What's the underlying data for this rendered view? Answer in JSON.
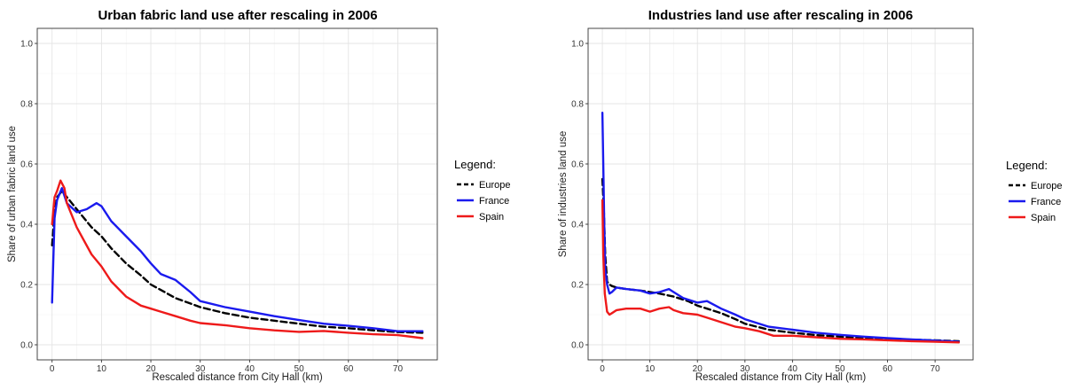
{
  "chart_data": [
    {
      "type": "line",
      "title": "Urban fabric land use after rescaling in 2006",
      "xlabel": "Rescaled distance from City Hall (km)",
      "ylabel": "Share of urban fabric land use",
      "xlim": [
        -3,
        78
      ],
      "ylim": [
        -0.05,
        1.05
      ],
      "xticks": [
        0,
        10,
        20,
        30,
        40,
        50,
        60,
        70
      ],
      "yticks": [
        0.0,
        0.2,
        0.4,
        0.6,
        0.8,
        1.0
      ],
      "grid": true,
      "legend": {
        "title": "Legend:",
        "placement": "right"
      },
      "series": [
        {
          "name": "Europe",
          "color": "#000000",
          "dash": "dashed",
          "x": [
            0,
            0.5,
            1,
            2,
            3,
            5,
            8,
            10,
            12,
            15,
            18,
            20,
            25,
            30,
            35,
            40,
            45,
            50,
            55,
            60,
            65,
            70,
            75
          ],
          "y": [
            0.33,
            0.44,
            0.49,
            0.51,
            0.49,
            0.45,
            0.39,
            0.36,
            0.32,
            0.27,
            0.23,
            0.2,
            0.155,
            0.125,
            0.105,
            0.09,
            0.08,
            0.07,
            0.06,
            0.055,
            0.048,
            0.042,
            0.04
          ]
        },
        {
          "name": "France",
          "color": "#1a1aee",
          "dash": "solid",
          "x": [
            0,
            0.5,
            1,
            2,
            3,
            5,
            7,
            9,
            10,
            12,
            15,
            18,
            20,
            22,
            25,
            28,
            30,
            35,
            40,
            45,
            50,
            55,
            60,
            65,
            70,
            75
          ],
          "y": [
            0.14,
            0.42,
            0.48,
            0.52,
            0.47,
            0.44,
            0.45,
            0.47,
            0.46,
            0.41,
            0.36,
            0.31,
            0.27,
            0.235,
            0.215,
            0.175,
            0.145,
            0.125,
            0.11,
            0.095,
            0.082,
            0.07,
            0.063,
            0.055,
            0.045,
            0.045
          ]
        },
        {
          "name": "Spain",
          "color": "#ee1a1a",
          "dash": "solid",
          "x": [
            0,
            0.5,
            1,
            1.7,
            2.5,
            3,
            5,
            8,
            10,
            12,
            15,
            18,
            20,
            22,
            25,
            28,
            30,
            35,
            40,
            45,
            50,
            55,
            60,
            65,
            70,
            75
          ],
          "y": [
            0.4,
            0.49,
            0.51,
            0.545,
            0.52,
            0.47,
            0.39,
            0.3,
            0.26,
            0.21,
            0.16,
            0.13,
            0.12,
            0.11,
            0.095,
            0.08,
            0.072,
            0.065,
            0.055,
            0.048,
            0.043,
            0.046,
            0.04,
            0.035,
            0.032,
            0.022
          ]
        }
      ]
    },
    {
      "type": "line",
      "title": "Industries land use after rescaling in 2006",
      "xlabel": "Rescaled distance from City Hall (km)",
      "ylabel": "Share of industries land use",
      "xlim": [
        -3,
        78
      ],
      "ylim": [
        -0.05,
        1.05
      ],
      "xticks": [
        0,
        10,
        20,
        30,
        40,
        50,
        60,
        70
      ],
      "yticks": [
        0.0,
        0.2,
        0.4,
        0.6,
        0.8,
        1.0
      ],
      "grid": true,
      "legend": {
        "title": "Legend:",
        "placement": "right"
      },
      "series": [
        {
          "name": "Europe",
          "color": "#000000",
          "dash": "dashed",
          "x": [
            0,
            0.3,
            0.6,
            1,
            1.5,
            2,
            3,
            5,
            8,
            10,
            12,
            15,
            18,
            20,
            22,
            25,
            28,
            30,
            35,
            40,
            45,
            50,
            55,
            60,
            65,
            70,
            75
          ],
          "y": [
            0.55,
            0.45,
            0.3,
            0.21,
            0.2,
            0.195,
            0.19,
            0.185,
            0.18,
            0.175,
            0.17,
            0.16,
            0.145,
            0.13,
            0.12,
            0.105,
            0.085,
            0.07,
            0.05,
            0.04,
            0.032,
            0.027,
            0.022,
            0.02,
            0.017,
            0.015,
            0.012
          ]
        },
        {
          "name": "France",
          "color": "#1a1aee",
          "dash": "solid",
          "x": [
            0,
            0.2,
            0.4,
            0.6,
            1,
            1.5,
            2,
            3,
            5,
            8,
            10,
            12,
            14,
            15,
            17,
            20,
            22,
            25,
            28,
            30,
            35,
            40,
            45,
            50,
            55,
            60,
            65,
            70,
            75
          ],
          "y": [
            0.77,
            0.6,
            0.4,
            0.25,
            0.2,
            0.17,
            0.175,
            0.19,
            0.185,
            0.18,
            0.17,
            0.175,
            0.185,
            0.175,
            0.155,
            0.14,
            0.145,
            0.12,
            0.1,
            0.085,
            0.06,
            0.05,
            0.04,
            0.033,
            0.027,
            0.022,
            0.018,
            0.014,
            0.01
          ]
        },
        {
          "name": "Spain",
          "color": "#ee1a1a",
          "dash": "solid",
          "x": [
            0,
            0.2,
            0.5,
            1,
            1.5,
            2,
            3,
            5,
            8,
            10,
            12,
            14,
            15,
            17,
            20,
            22,
            25,
            28,
            30,
            33,
            36,
            40,
            45,
            50,
            55,
            60,
            65,
            70,
            75
          ],
          "y": [
            0.48,
            0.3,
            0.17,
            0.11,
            0.1,
            0.105,
            0.115,
            0.12,
            0.12,
            0.11,
            0.12,
            0.125,
            0.115,
            0.105,
            0.1,
            0.09,
            0.075,
            0.06,
            0.055,
            0.045,
            0.03,
            0.03,
            0.025,
            0.02,
            0.018,
            0.015,
            0.012,
            0.01,
            0.008
          ]
        }
      ]
    }
  ]
}
